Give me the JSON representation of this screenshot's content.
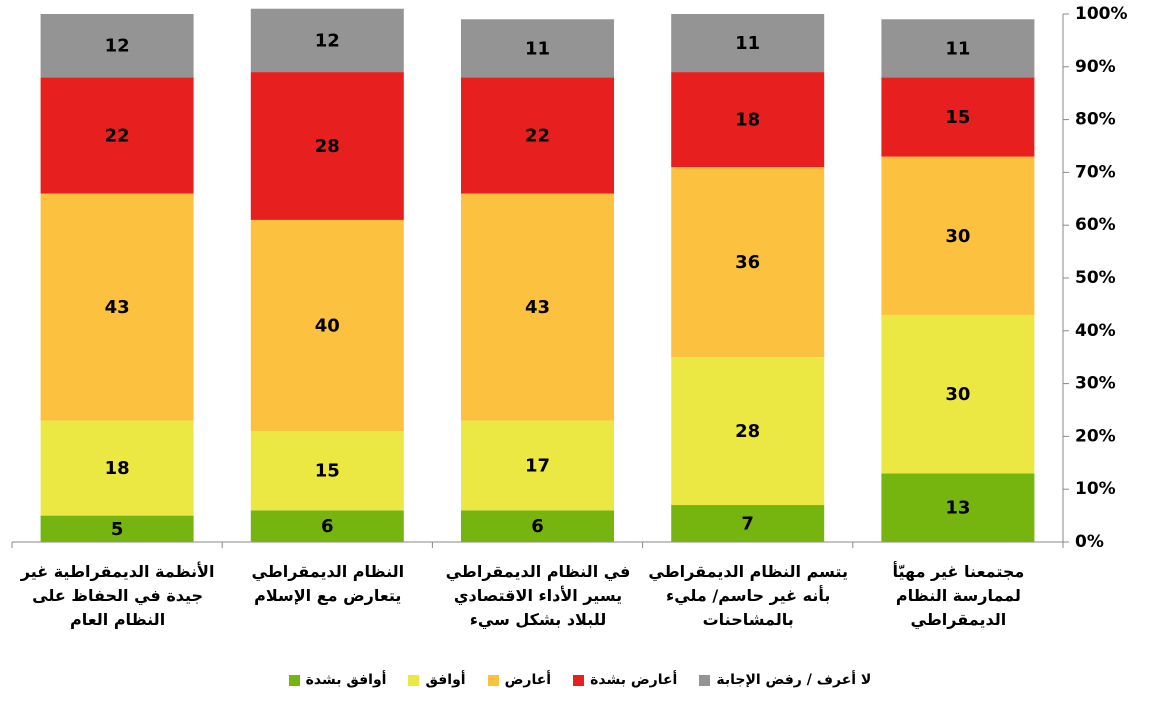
{
  "chart_data": {
    "type": "stacked_bar",
    "categories": [
      "الأنظمة الديمقراطية غير جيدة في الحفاظ على النظام العام",
      "النظام الديمقراطي يتعارض مع الإسلام",
      "في النظام الديمقراطي يسير الأداء الاقتصادي للبلاد بشكل سيء",
      "يتسم النظام الديمقراطي بأنه غير حاسم/ مليء بالمشاحنات",
      "مجتمعنا غير مهيّأ لممارسة النظام الديمقراطي"
    ],
    "series": [
      {
        "name": "أوافق بشدة",
        "color": "#76b510",
        "values": [
          5,
          6,
          6,
          7,
          13
        ]
      },
      {
        "name": "أوافق",
        "color": "#ece843",
        "values": [
          18,
          15,
          17,
          28,
          30
        ]
      },
      {
        "name": "أعارض",
        "color": "#fcc13e",
        "values": [
          43,
          40,
          43,
          36,
          30
        ]
      },
      {
        "name": "أعارض بشدة",
        "color": "#e81f1f",
        "values": [
          22,
          28,
          22,
          18,
          15
        ]
      },
      {
        "name": "لا أعرف / رفض الإجابة",
        "color": "#949494",
        "values": [
          12,
          12,
          11,
          11,
          11
        ]
      }
    ],
    "ylim": [
      0,
      100
    ],
    "yticks": [
      {
        "value": 0,
        "label": "0%"
      },
      {
        "value": 10,
        "label": "10%"
      },
      {
        "value": 20,
        "label": "20%"
      },
      {
        "value": 30,
        "label": "30%"
      },
      {
        "value": 40,
        "label": "40%"
      },
      {
        "value": 50,
        "label": "50%"
      },
      {
        "value": 60,
        "label": "60%"
      },
      {
        "value": 70,
        "label": "70%"
      },
      {
        "value": 80,
        "label": "80%"
      },
      {
        "value": 90,
        "label": "90%"
      },
      {
        "value": 100,
        "label": "100%"
      }
    ],
    "grid": false,
    "legend": "bottom"
  }
}
